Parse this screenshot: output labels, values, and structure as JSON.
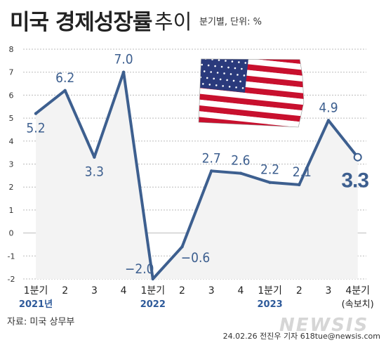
{
  "title": "미국 경제성장률",
  "subtitle": "추이",
  "unit_note": "분기별, 단위: %",
  "source": "자료: 미국 상무부",
  "credit": "24.02.26 전진우 기자 618tue@newsis.com",
  "watermark": "NEWSIS",
  "colors": {
    "line": "#3d5f8f",
    "area": "#f3f3f3",
    "label": "#3d5f8f",
    "grid": "#bbbbbb"
  },
  "flag_icon": "us-flag-icon",
  "chart_data": {
    "type": "line",
    "title": "미국 경제성장률 추이",
    "ylabel": "%",
    "ylim": [
      -2,
      8
    ],
    "yticks": [
      8,
      7,
      6,
      5,
      4,
      3,
      2,
      1,
      0,
      -1,
      -2
    ],
    "ytick_labels": [
      "8",
      "7",
      "6",
      "5",
      "4",
      "3",
      "2",
      "1",
      "0",
      "-1",
      "-2"
    ],
    "grid": true,
    "categories": [
      "1분기",
      "2",
      "3",
      "4",
      "1분기",
      "2",
      "3",
      "4",
      "1분기",
      "2",
      "3",
      "4분기"
    ],
    "year_labels": [
      {
        "label": "2021년",
        "index": 0
      },
      {
        "label": "2022",
        "index": 4
      },
      {
        "label": "2023",
        "index": 8
      }
    ],
    "final_note": "(속보치)",
    "series": [
      {
        "values": [
          5.2,
          6.2,
          3.3,
          7.0,
          -2.0,
          -0.6,
          2.7,
          2.6,
          2.2,
          2.1,
          4.9,
          3.3
        ],
        "labels": [
          "5.2",
          "6.2",
          "3.3",
          "7.0",
          "−2.0",
          "−0.6",
          "2.7",
          "2.6",
          "2.2",
          "2.1",
          "4.9",
          "3.3"
        ]
      }
    ]
  }
}
